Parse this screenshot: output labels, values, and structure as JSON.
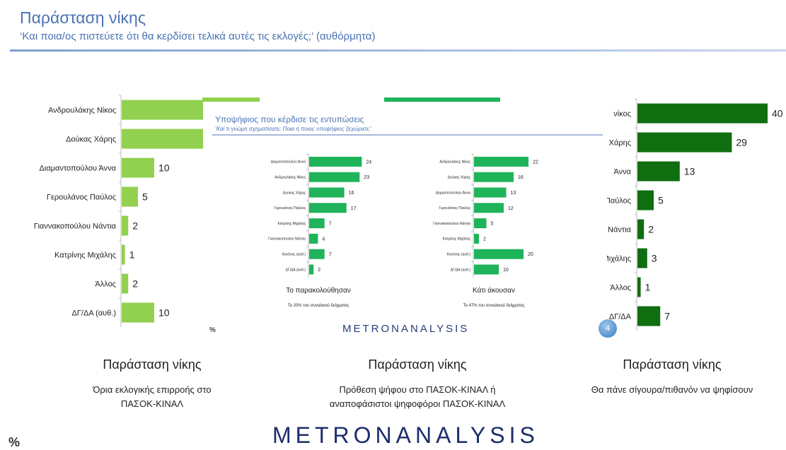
{
  "header": {
    "title": "Παράσταση νίκης",
    "subtitle": "‘Και ποια/ος πιστεύετε ότι θα κερδίσει τελικά αυτές τις εκλογές;’ (αυθόρμητα)"
  },
  "inset": {
    "title": "Υποψήφιος που κέρδισε τις εντυπώσεις",
    "subtitle": "‘Και τι γνώμη σχηματίσατε; Ποια ή ποιος υποψήφιος ξεχώρισε;’"
  },
  "brand": {
    "mid": "METRONANALYSIS",
    "big": "METRONANALYSIS"
  },
  "page_number": "4",
  "percent_sign": "%",
  "percent_sign_small": "%",
  "colors": {
    "light_green": "#92d050",
    "mid_green": "#1fb35a",
    "dark_green": "#0f6e0f",
    "title_blue": "#4a73b5"
  },
  "captions": {
    "left": {
      "title": "Παράσταση νίκης",
      "line1": "Όρια εκλογικής επιρροής στο",
      "line2": "ΠΑΣΟΚ-ΚΙΝΑΛ"
    },
    "center": {
      "title": "Παράσταση νίκης",
      "line1": "Πρόθεση ψήφου στο ΠΑΣΟΚ-ΚΙΝΑΛ ή",
      "line2": "αναποφάσιστοι ψηφοφόροι ΠΑΣΟΚ-ΚΙΝΑΛ"
    },
    "right": {
      "title": "Παράσταση νίκης",
      "line1": "Θα πάνε σίγουρα/πιθανόν να ψηφίσουν"
    }
  },
  "chart_data": [
    {
      "type": "bar",
      "orientation": "horizontal",
      "title": "Όρια εκλογικής επιρροής στο ΠΑΣΟΚ-ΚΙΝΑΛ",
      "categories": [
        "Ανδρουλάκης Νίκος",
        "Δούκας Χάρης",
        "Διαμαντοπούλου Άννα",
        "Γερουλάνος Παύλος",
        "Γιαννακοπούλου Νάντια",
        "Κατρίνης Μιχάλης",
        "Άλλος",
        "ΔΓ/ΔΑ (αυθ.)"
      ],
      "values": [
        null,
        null,
        10,
        5,
        2,
        1,
        2,
        10
      ],
      "unit": "%"
    },
    {
      "type": "bar",
      "orientation": "horizontal",
      "title": "Το παρακολούθησαν",
      "note": "Το 20% του συνολικού δείγματος",
      "categories": [
        "Διαμαντοπούλου Άννα",
        "Ανδρουλάκης Νίκος",
        "Δούκας Χάρης",
        "Γερουλάνος Παύλος",
        "Κατρίνης Μιχάλης",
        "Γιαννακοπούλου Νάντια",
        "Κανένας (αυθ.)",
        "ΔΓ/ΔΑ (αυθ.)"
      ],
      "values": [
        24,
        23,
        16,
        17,
        7,
        4,
        7,
        2
      ]
    },
    {
      "type": "bar",
      "orientation": "horizontal",
      "title": "Κάτι άκουσαν",
      "note": "Το 47% του συνολικού δείγματος",
      "categories": [
        "Ανδρουλάκης Νίκος",
        "Δούκας Χάρης",
        "Διαμαντοπούλου Άννα",
        "Γερουλάνος Παύλος",
        "Γιαννακοπούλου Νάντια",
        "Κατρίνης Μιχάλης",
        "Κανένας (αυθ.)",
        "ΔΓ/ΔΑ (αυθ.)"
      ],
      "values": [
        22,
        16,
        13,
        12,
        5,
        2,
        20,
        10
      ]
    },
    {
      "type": "bar",
      "orientation": "horizontal",
      "title": "Θα πάνε σίγουρα/πιθανόν να ψηφίσουν",
      "categories": [
        "νίκος",
        "Χάρης",
        "Άννα",
        "Παύλος",
        "Νάντια",
        "Μιχάλης",
        "Άλλος",
        "ΔΓ/ΔΑ"
      ],
      "values": [
        40,
        29,
        13,
        5,
        2,
        3,
        1,
        7
      ]
    }
  ]
}
